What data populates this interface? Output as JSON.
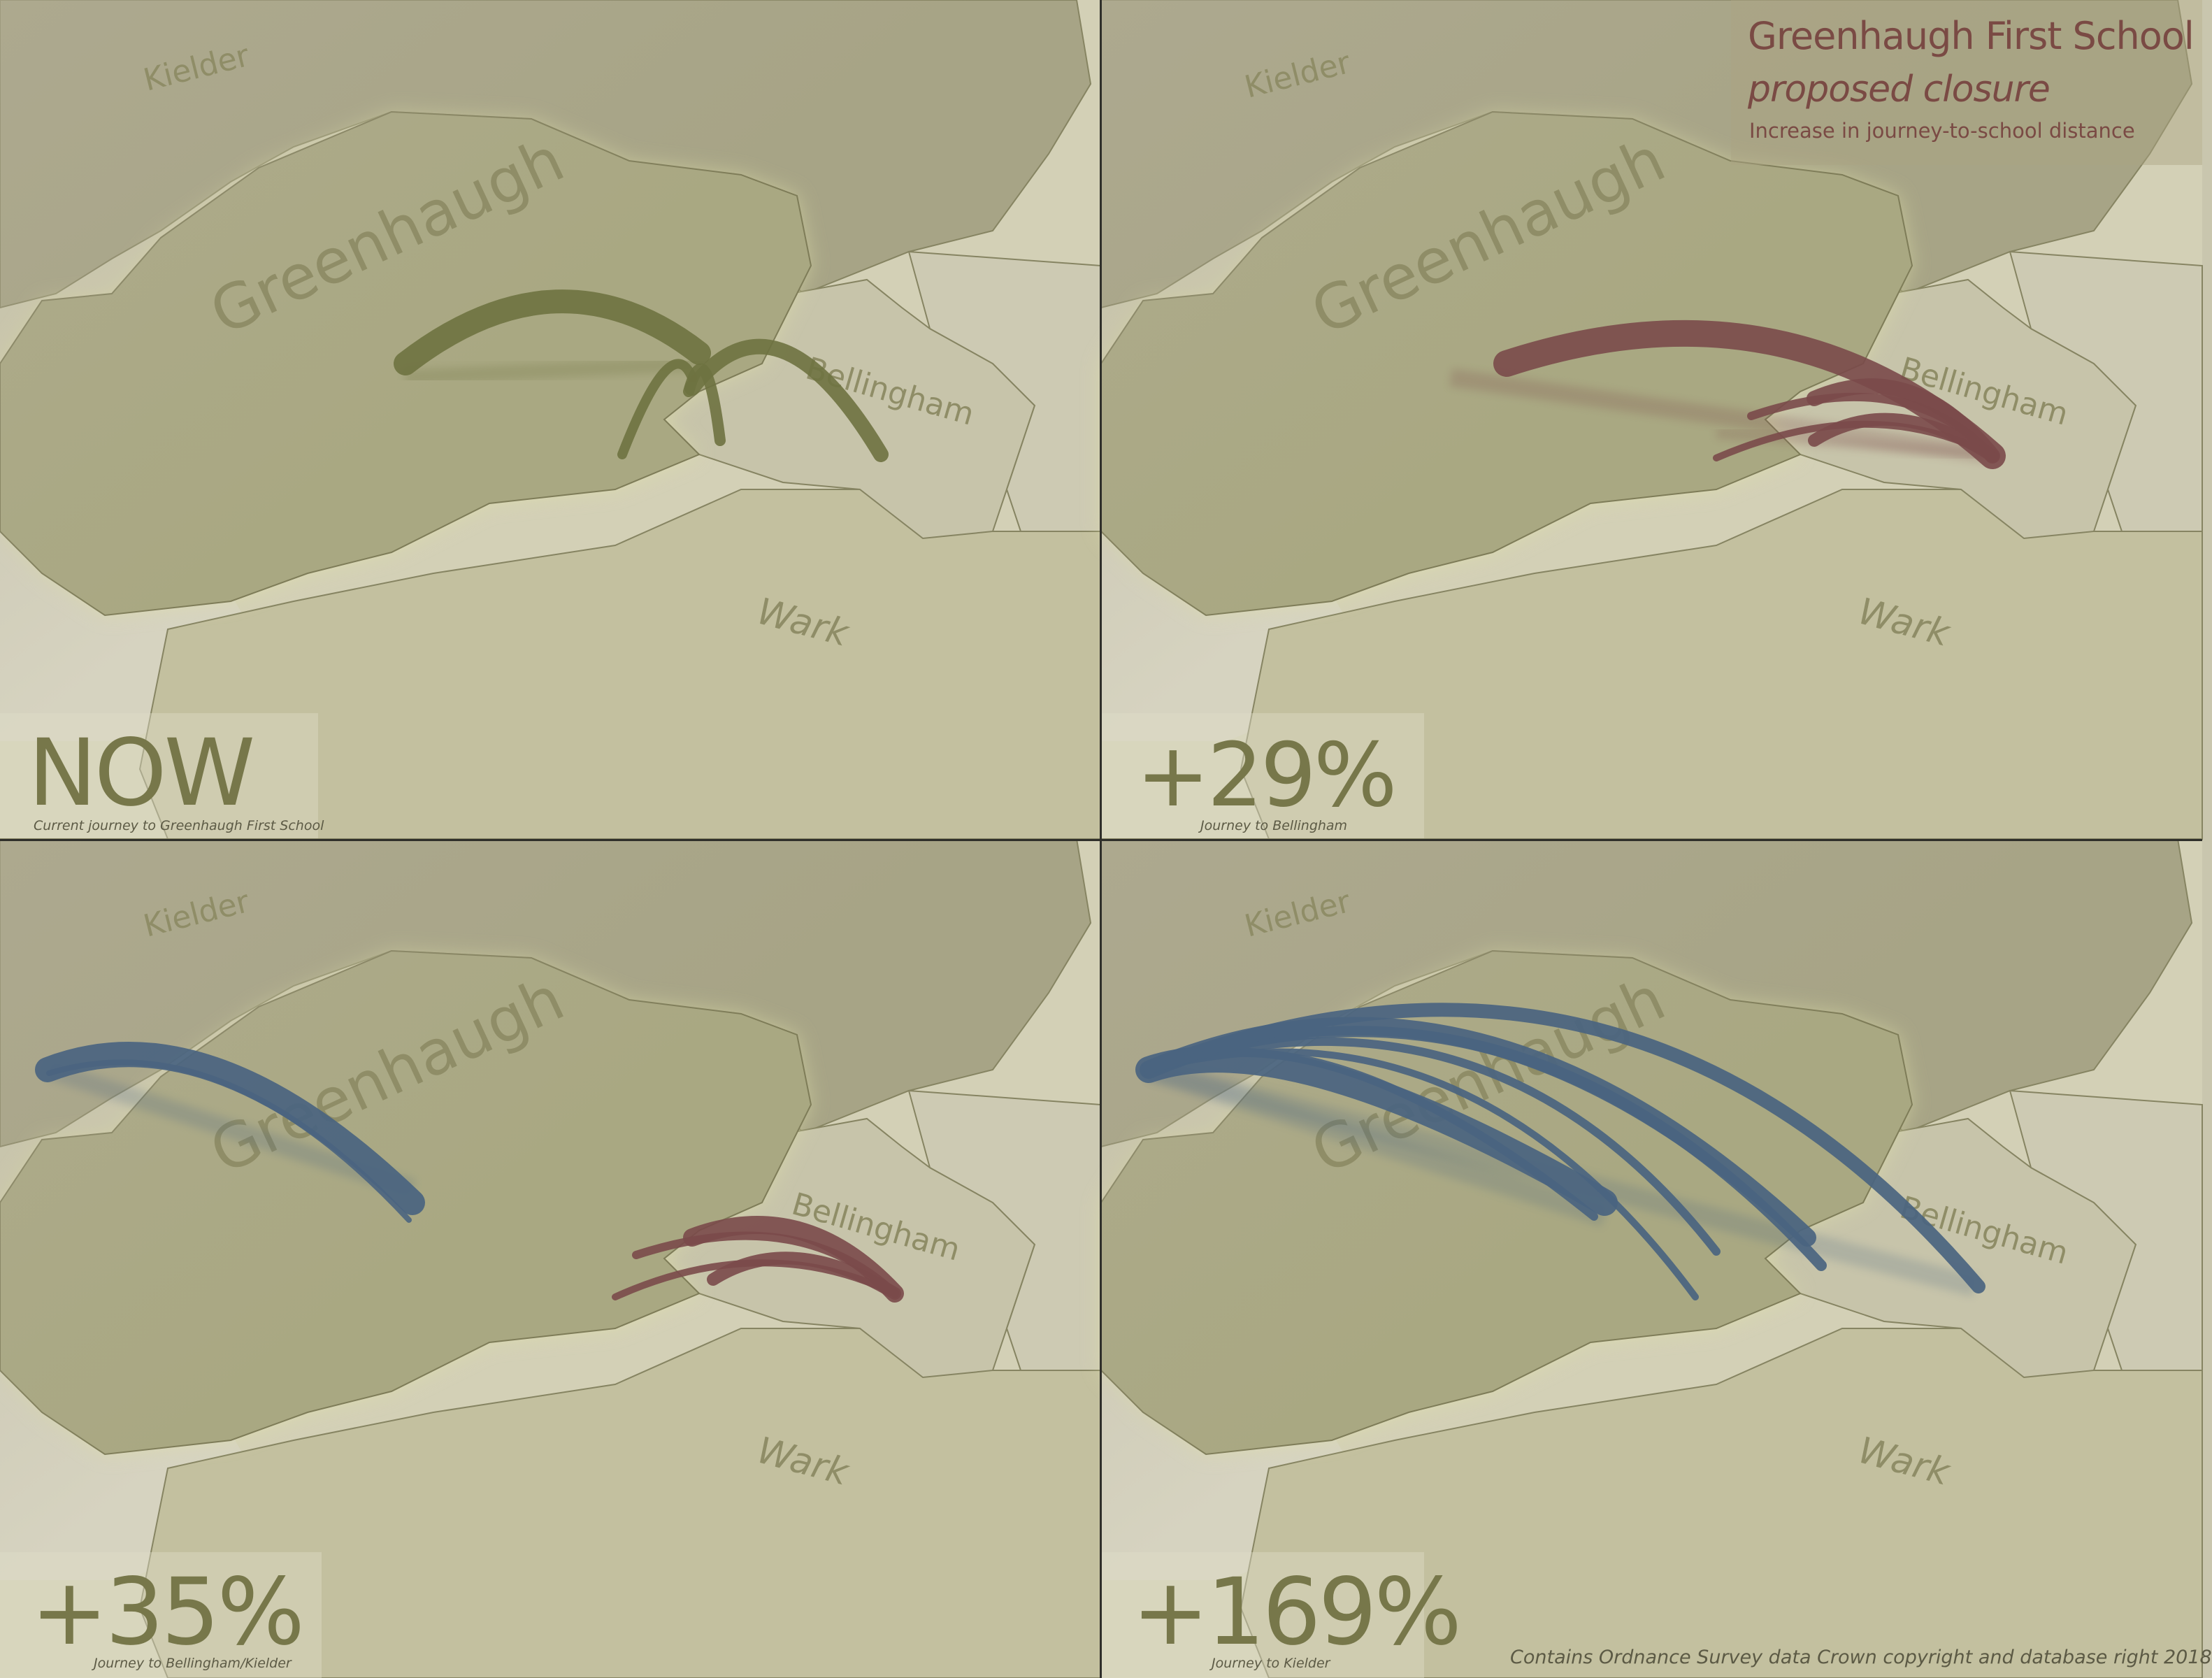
{
  "title": {
    "school": "Greenhaugh First School",
    "status": "proposed closure",
    "subtitle": "Increase in journey-to-school distance"
  },
  "credit": "Contains Ordnance Survey data Crown copyright and database right 2018",
  "places": [
    "Kielder",
    "Greenhaugh",
    "Bellingham",
    "Wark"
  ],
  "colors": {
    "now_routes": "#6e7240",
    "bellingham_routes": "#7a4a4a",
    "kielder_routes": "#4a6480",
    "figure_text": "#77774a",
    "title_text": "#7a4a44"
  },
  "panels": [
    {
      "id": "now",
      "figure": "NOW",
      "caption": "Current journey to Greenhaugh First School",
      "destination": "Greenhaugh"
    },
    {
      "id": "bellingham",
      "figure": "+29%",
      "caption": "Journey to Bellingham",
      "destination": "Bellingham"
    },
    {
      "id": "bellingham-kielder",
      "figure": "+35%",
      "caption": "Journey to Bellingham/Kielder",
      "destination": "Bellingham/Kielder"
    },
    {
      "id": "kielder",
      "figure": "+169%",
      "caption": "Journey to Kielder",
      "destination": "Kielder"
    }
  ]
}
